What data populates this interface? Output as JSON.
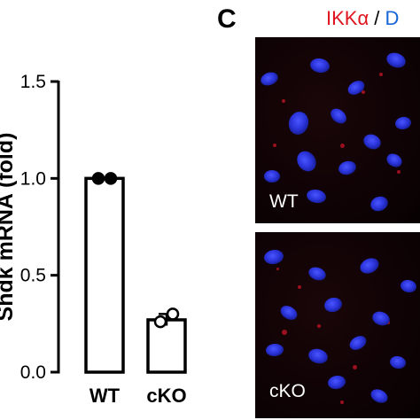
{
  "chart_data": {
    "type": "bar",
    "categories": [
      "WT",
      "cKO"
    ],
    "values": [
      1.0,
      0.27
    ],
    "errors": [
      0.0,
      0.03
    ],
    "points": [
      [
        1.0,
        1.0
      ],
      [
        0.26,
        0.3
      ]
    ],
    "ylabel": "Shdk mRNA (fold)",
    "xlabel": "",
    "ylim": [
      0,
      1.5
    ],
    "yticks": [
      "0.0",
      "0.5",
      "1.0",
      "1.5"
    ],
    "grid": false,
    "legend": "none"
  },
  "panel_c": {
    "letter": "C",
    "stain_red": "IKKα",
    "stain_sep": " / ",
    "stain_blue": "D",
    "panels": [
      {
        "label": "WT"
      },
      {
        "label": "cKO"
      }
    ]
  },
  "colors": {
    "red_channel": "#e0141e",
    "blue_channel": "#1565d8"
  }
}
